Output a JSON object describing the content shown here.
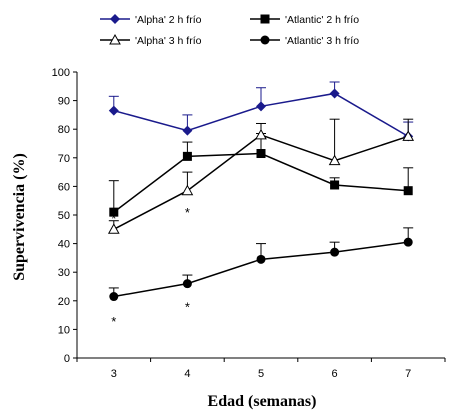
{
  "chart_data": {
    "type": "line",
    "xlabel": "Edad (semanas)",
    "ylabel": "Supervivencia (%)",
    "x": [
      3,
      4,
      5,
      6,
      7
    ],
    "xlim": [
      2.5,
      7.5
    ],
    "ylim": [
      0,
      100
    ],
    "yticks": [
      0,
      10,
      20,
      30,
      40,
      50,
      60,
      70,
      80,
      90,
      100
    ],
    "xticks": [
      "3",
      "4",
      "5",
      "6",
      "7"
    ],
    "grid": false,
    "legend_position": "top",
    "series": [
      {
        "name": "'Alpha' 2 h frío",
        "marker": "diamond",
        "color": "#1a1a8c",
        "values": [
          86.5,
          79.5,
          88,
          92.5,
          77.5
        ],
        "err": [
          5,
          5.5,
          6.5,
          4,
          5
        ]
      },
      {
        "name": "'Atlantic' 2 h frío",
        "marker": "square",
        "color": "#000000",
        "values": [
          51,
          70.5,
          71.5,
          60.5,
          58.5
        ],
        "err": [
          11,
          5,
          7,
          2.5,
          8
        ]
      },
      {
        "name": "'Alpha' 3 h frío",
        "marker": "triangle",
        "color": "#000000",
        "values": [
          45,
          58.5,
          78,
          69,
          77.5
        ],
        "err": [
          3,
          6.5,
          4,
          14.5,
          6
        ]
      },
      {
        "name": "'Atlantic' 3 h frío",
        "marker": "circle",
        "color": "#000000",
        "values": [
          21.5,
          26,
          34.5,
          37,
          40.5
        ],
        "err": [
          3,
          3,
          5.5,
          3.5,
          5
        ]
      }
    ],
    "annotations": [
      {
        "text": "*",
        "x": 3,
        "y": 49
      },
      {
        "text": "*",
        "x": 3,
        "y": 13
      },
      {
        "text": "*",
        "x": 4,
        "y": 51
      },
      {
        "text": "*",
        "x": 4,
        "y": 18
      }
    ]
  }
}
